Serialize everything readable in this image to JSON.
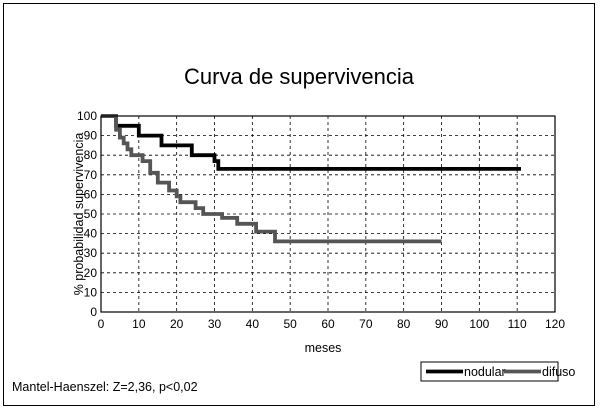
{
  "chart_data": {
    "type": "line",
    "title": "Curva de supervivencia",
    "xlabel": "meses",
    "ylabel": "% probabilidad supervivencia",
    "xlim": [
      0,
      120
    ],
    "ylim": [
      0,
      100
    ],
    "xticks": [
      0,
      10,
      20,
      30,
      40,
      50,
      60,
      70,
      80,
      90,
      100,
      110,
      120
    ],
    "yticks": [
      0,
      10,
      20,
      30,
      40,
      50,
      60,
      70,
      80,
      90,
      100
    ],
    "grid": true,
    "legend_position": "bottom-right",
    "series": [
      {
        "name": "nodular",
        "color": "#000000",
        "step": true,
        "points": [
          [
            0,
            100
          ],
          [
            4,
            100
          ],
          [
            4,
            95
          ],
          [
            10,
            95
          ],
          [
            10,
            90
          ],
          [
            16,
            90
          ],
          [
            16,
            85
          ],
          [
            24,
            85
          ],
          [
            24,
            80
          ],
          [
            30,
            80
          ],
          [
            30,
            77
          ],
          [
            31,
            77
          ],
          [
            31,
            73
          ],
          [
            111,
            73
          ]
        ]
      },
      {
        "name": "difuso",
        "color": "#555555",
        "step": true,
        "points": [
          [
            0,
            100
          ],
          [
            4,
            100
          ],
          [
            4,
            93
          ],
          [
            5,
            93
          ],
          [
            5,
            89
          ],
          [
            6,
            89
          ],
          [
            6,
            86
          ],
          [
            7,
            86
          ],
          [
            7,
            83
          ],
          [
            8,
            83
          ],
          [
            8,
            80
          ],
          [
            11,
            80
          ],
          [
            11,
            77
          ],
          [
            13,
            77
          ],
          [
            13,
            71
          ],
          [
            15,
            71
          ],
          [
            15,
            66
          ],
          [
            18,
            66
          ],
          [
            18,
            62
          ],
          [
            20,
            62
          ],
          [
            20,
            59
          ],
          [
            21,
            59
          ],
          [
            21,
            56
          ],
          [
            25,
            56
          ],
          [
            25,
            53
          ],
          [
            27,
            53
          ],
          [
            27,
            50
          ],
          [
            32,
            50
          ],
          [
            32,
            48
          ],
          [
            36,
            48
          ],
          [
            36,
            45
          ],
          [
            41,
            45
          ],
          [
            41,
            41
          ],
          [
            46,
            41
          ],
          [
            46,
            36
          ],
          [
            90,
            36
          ]
        ]
      }
    ],
    "annotation": "Mantel-Haenszel: Z=2,36, p<0,02"
  }
}
